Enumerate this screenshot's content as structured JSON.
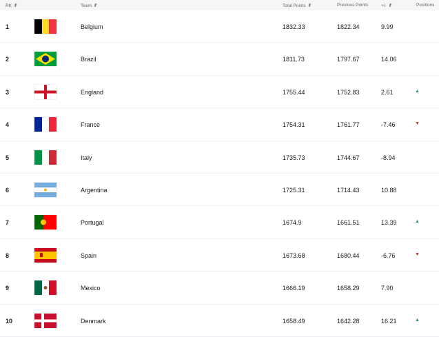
{
  "header": {
    "rank": "RK",
    "team": "Team",
    "total": "Total Points",
    "previous": "Previous Points",
    "diff": "+/-",
    "positions": "Positions"
  },
  "colors": {
    "up": "#2a9d5c",
    "down": "#c0392b"
  },
  "rows": [
    {
      "rank": "1",
      "team": "Belgium",
      "flag": "belgium",
      "total": "1832.33",
      "previous": "1822.34",
      "diff": "9.99",
      "trend": "none"
    },
    {
      "rank": "2",
      "team": "Brazil",
      "flag": "brazil",
      "total": "1811.73",
      "previous": "1797.67",
      "diff": "14.06",
      "trend": "none"
    },
    {
      "rank": "3",
      "team": "England",
      "flag": "england",
      "total": "1755.44",
      "previous": "1752.83",
      "diff": "2.61",
      "trend": "up"
    },
    {
      "rank": "4",
      "team": "France",
      "flag": "france",
      "total": "1754.31",
      "previous": "1761.77",
      "diff": "-7.46",
      "trend": "down"
    },
    {
      "rank": "5",
      "team": "Italy",
      "flag": "italy",
      "total": "1735.73",
      "previous": "1744.67",
      "diff": "-8.94",
      "trend": "none"
    },
    {
      "rank": "6",
      "team": "Argentina",
      "flag": "argentina",
      "total": "1725.31",
      "previous": "1714.43",
      "diff": "10.88",
      "trend": "none"
    },
    {
      "rank": "7",
      "team": "Portugal",
      "flag": "portugal",
      "total": "1674.9",
      "previous": "1661.51",
      "diff": "13.39",
      "trend": "up"
    },
    {
      "rank": "8",
      "team": "Spain",
      "flag": "spain",
      "total": "1673.68",
      "previous": "1680.44",
      "diff": "-6.76",
      "trend": "down"
    },
    {
      "rank": "9",
      "team": "Mexico",
      "flag": "mexico",
      "total": "1666.19",
      "previous": "1658.29",
      "diff": "7.90",
      "trend": "none"
    },
    {
      "rank": "10",
      "team": "Denmark",
      "flag": "denmark",
      "total": "1658.49",
      "previous": "1642.28",
      "diff": "16.21",
      "trend": "up"
    }
  ]
}
